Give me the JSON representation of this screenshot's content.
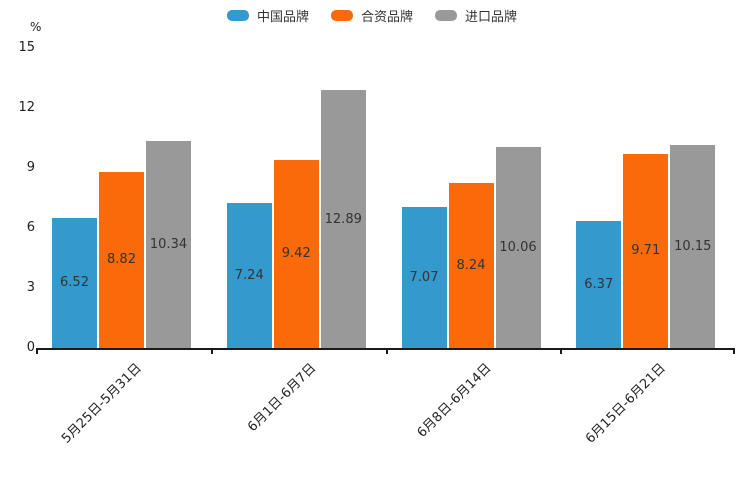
{
  "chart_data": {
    "type": "bar",
    "title": "",
    "unit_label": "%",
    "categories": [
      "5月25日-5月31日",
      "6月1日-6月7日",
      "6月8日-6月14日",
      "6月15日-6月21日"
    ],
    "series": [
      {
        "name": "中国品牌",
        "color": "#3499CC",
        "values": [
          6.52,
          7.24,
          7.07,
          6.37
        ]
      },
      {
        "name": "合资品牌",
        "color": "#FB6A0A",
        "values": [
          8.82,
          9.42,
          8.24,
          9.71
        ]
      },
      {
        "name": "进口品牌",
        "color": "#999999",
        "values": [
          10.34,
          12.89,
          10.06,
          10.15
        ]
      }
    ],
    "ylim": [
      0,
      15
    ],
    "yticks": [
      0,
      3,
      6,
      9,
      12,
      15
    ],
    "legend_position": "top-center",
    "grid": false,
    "value_labels": "centered-inside-bars",
    "x_label_rotation_deg": 45,
    "axis_color": "#1a1a1a",
    "value_label_color": "#333333"
  }
}
